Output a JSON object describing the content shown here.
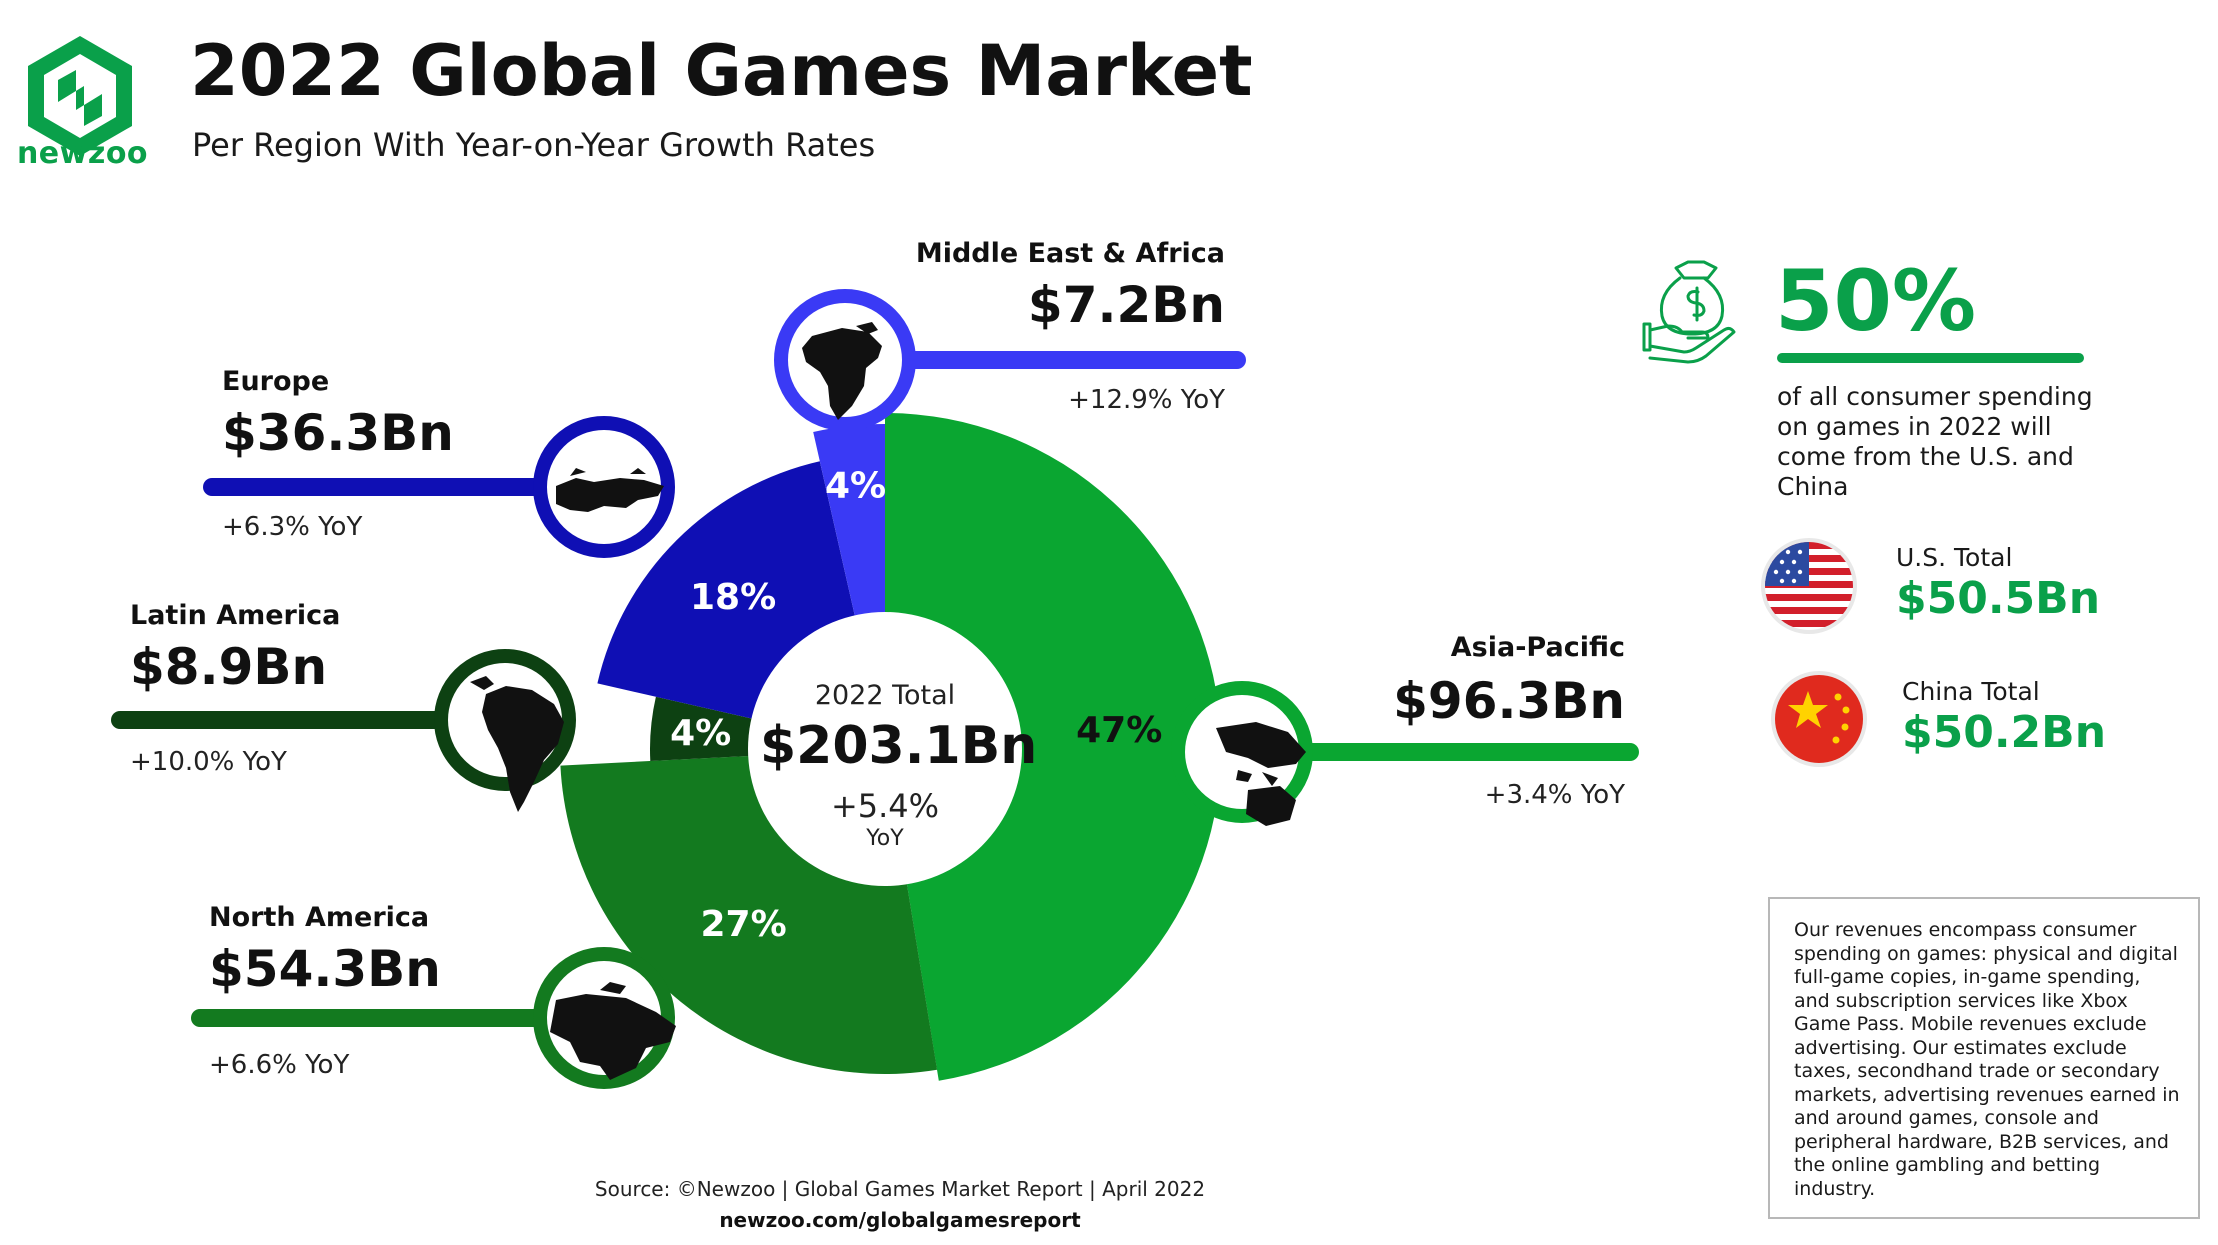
{
  "brand": {
    "name": "newzoo"
  },
  "header": {
    "title": "2022 Global Games Market",
    "subtitle": "Per Region With Year-on-Year Growth Rates"
  },
  "chart_data": {
    "type": "pie",
    "title": "2022 Global Games Market",
    "subtitle": "Per Region With Year-on-Year Growth Rates",
    "total": {
      "label": "2022 Total",
      "value": "$203.1Bn",
      "growth": "+5.4%",
      "growth_unit": "YoY"
    },
    "slices": [
      {
        "name": "Asia-Pacific",
        "value_bn": 96.3,
        "value_label": "$96.3Bn",
        "share": 47,
        "share_label": "47%",
        "yoy": "+3.4% YoY",
        "color": "#0aa631"
      },
      {
        "name": "North America",
        "value_bn": 54.3,
        "value_label": "$54.3Bn",
        "share": 27,
        "share_label": "27%",
        "yoy": "+6.6% YoY",
        "color": "#137a1f"
      },
      {
        "name": "Latin America",
        "value_bn": 8.9,
        "value_label": "$8.9Bn",
        "share": 4,
        "share_label": "4%",
        "yoy": "+10.0% YoY",
        "color": "#0d4112"
      },
      {
        "name": "Europe",
        "value_bn": 36.3,
        "value_label": "$36.3Bn",
        "share": 18,
        "share_label": "18%",
        "yoy": "+6.3% YoY",
        "color": "#0f0fb4"
      },
      {
        "name": "Middle East & Africa",
        "value_bn": 7.2,
        "value_label": "$7.2Bn",
        "share": 4,
        "share_label": "4%",
        "yoy": "+12.9% YoY",
        "color": "#3a3af5"
      }
    ]
  },
  "highlight": {
    "icon": "money-bag-hand-icon",
    "percent": "50%",
    "description": "of all consumer spending on games in 2022 will come from the U.S. and China",
    "countries": [
      {
        "label": "U.S. Total",
        "value": "$50.5Bn",
        "icon": "us-flag-icon"
      },
      {
        "label": "China Total",
        "value": "$50.2Bn",
        "icon": "china-flag-icon"
      }
    ]
  },
  "note": "Our revenues encompass consumer spending on games: physical and digital full-game copies, in-game spending, and subscription services like Xbox Game Pass. Mobile revenues exclude advertising. Our estimates exclude taxes, secondhand trade or secondary markets, advertising revenues earned in and around games, console and peripheral hardware, B2B services, and the online gambling and betting industry.",
  "footer": {
    "source": "Source: ©Newzoo | Global Games Market Report | April 2022",
    "url": "newzoo.com/globalgamesreport"
  },
  "colors": {
    "accent_green": "#0aa04a",
    "text": "#111111"
  }
}
